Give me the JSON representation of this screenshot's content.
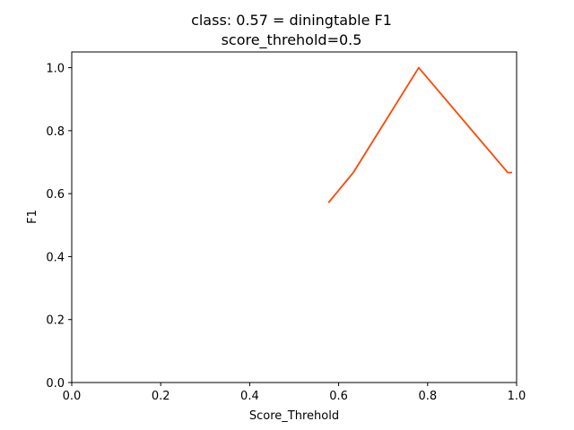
{
  "chart_data": {
    "type": "line",
    "title_line1": "class: 0.57 = diningtable F1",
    "title_line2": "score_threhold=0.5",
    "xlabel": "Score_Threhold",
    "ylabel": "F1",
    "xlim": [
      0.0,
      1.0
    ],
    "ylim": [
      0.0,
      1.05
    ],
    "x_ticks": [
      "0.0",
      "0.2",
      "0.4",
      "0.6",
      "0.8",
      "1.0"
    ],
    "y_ticks": [
      "0.0",
      "0.2",
      "0.4",
      "0.6",
      "0.8",
      "1.0"
    ],
    "grid": false,
    "series": [
      {
        "color": "#ff4500",
        "x": [
          0.577,
          0.633,
          0.78,
          0.98,
          0.99
        ],
        "y": [
          0.571,
          0.667,
          1.0,
          0.667,
          0.667
        ]
      }
    ]
  }
}
